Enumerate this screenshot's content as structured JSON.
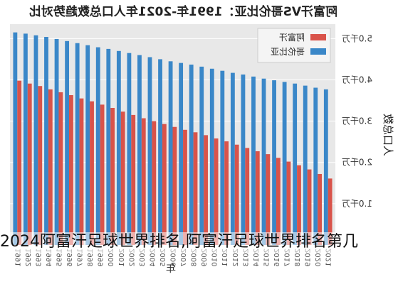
{
  "chart_data": {
    "type": "bar",
    "title": "阿富汗VS哥伦比亚：1991年-2021年人口总数趋势对比",
    "xlabel": "年",
    "ylabel": "人口总数",
    "categories": [
      "1991",
      "1992",
      "1993",
      "1994",
      "1995",
      "1996",
      "1997",
      "1998",
      "1999",
      "2000",
      "2001",
      "2002",
      "2003",
      "2004",
      "2005",
      "2006",
      "2007",
      "2008",
      "2009",
      "2010",
      "2011",
      "2012",
      "2013",
      "2014",
      "2015",
      "2016",
      "2017",
      "2018",
      "2019",
      "2020",
      "2021"
    ],
    "series": [
      {
        "name": "阿富汗",
        "color": "#d9534a",
        "values": [
          3.98,
          3.91,
          3.85,
          3.77,
          3.7,
          3.63,
          3.55,
          3.48,
          3.4,
          3.32,
          3.23,
          3.15,
          3.07,
          3.0,
          2.93,
          2.86,
          2.79,
          2.73,
          2.66,
          2.58,
          2.51,
          2.43,
          2.35,
          2.27,
          2.2,
          2.11,
          2.02,
          1.93,
          1.83,
          1.72,
          1.61
        ]
      },
      {
        "name": "哥伦比亚",
        "color": "#3a87c8",
        "values": [
          5.15,
          5.12,
          5.08,
          5.04,
          4.99,
          4.94,
          4.89,
          4.84,
          4.79,
          4.75,
          4.7,
          4.65,
          4.6,
          4.55,
          4.5,
          4.45,
          4.41,
          4.37,
          4.32,
          4.27,
          4.22,
          4.17,
          4.13,
          4.08,
          4.03,
          3.99,
          3.95,
          3.91,
          3.86,
          3.81,
          3.77
        ]
      }
    ],
    "yticks": [
      "1.0千万",
      "2.0千万",
      "3.0千万",
      "4.0千万",
      "5.0千万"
    ],
    "ylim": [
      0,
      5.35
    ],
    "grid": true,
    "legend_position": "top-right",
    "mirrored": true
  },
  "caption": "2024阿富汗足球世界排名,阿富汗足球世界排名第几"
}
